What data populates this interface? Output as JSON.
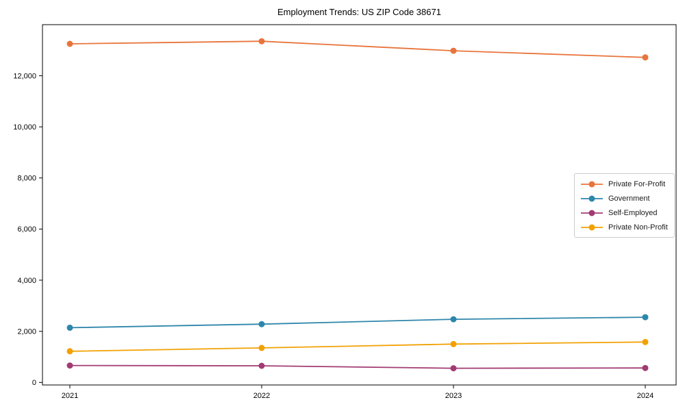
{
  "chart_data": {
    "type": "line",
    "title": "Employment Trends: US ZIP Code 38671",
    "xlabel": "",
    "ylabel": "",
    "categories": [
      "2021",
      "2022",
      "2023",
      "2024"
    ],
    "x": [
      2021,
      2022,
      2023,
      2024
    ],
    "series": [
      {
        "name": "Private For-Profit",
        "color": "#E8743B",
        "values": [
          13250,
          13350,
          12980,
          12720
        ]
      },
      {
        "name": "Government",
        "color": "#2E86AB",
        "values": [
          2140,
          2280,
          2470,
          2550
        ]
      },
      {
        "name": "Self-Employed",
        "color": "#A23B72",
        "values": [
          660,
          650,
          555,
          565
        ]
      },
      {
        "name": "Private Non-Profit",
        "color": "#F2A104",
        "values": [
          1220,
          1350,
          1500,
          1580
        ]
      }
    ],
    "ylim": [
      -100,
      14000
    ],
    "yticks": [
      0,
      2000,
      4000,
      6000,
      8000,
      10000,
      12000
    ],
    "ytick_labels": [
      "0",
      "2,000",
      "4,000",
      "6,000",
      "8,000",
      "10,000",
      "12,000"
    ],
    "grid": false,
    "legend_position": "right",
    "marker": "circle"
  }
}
